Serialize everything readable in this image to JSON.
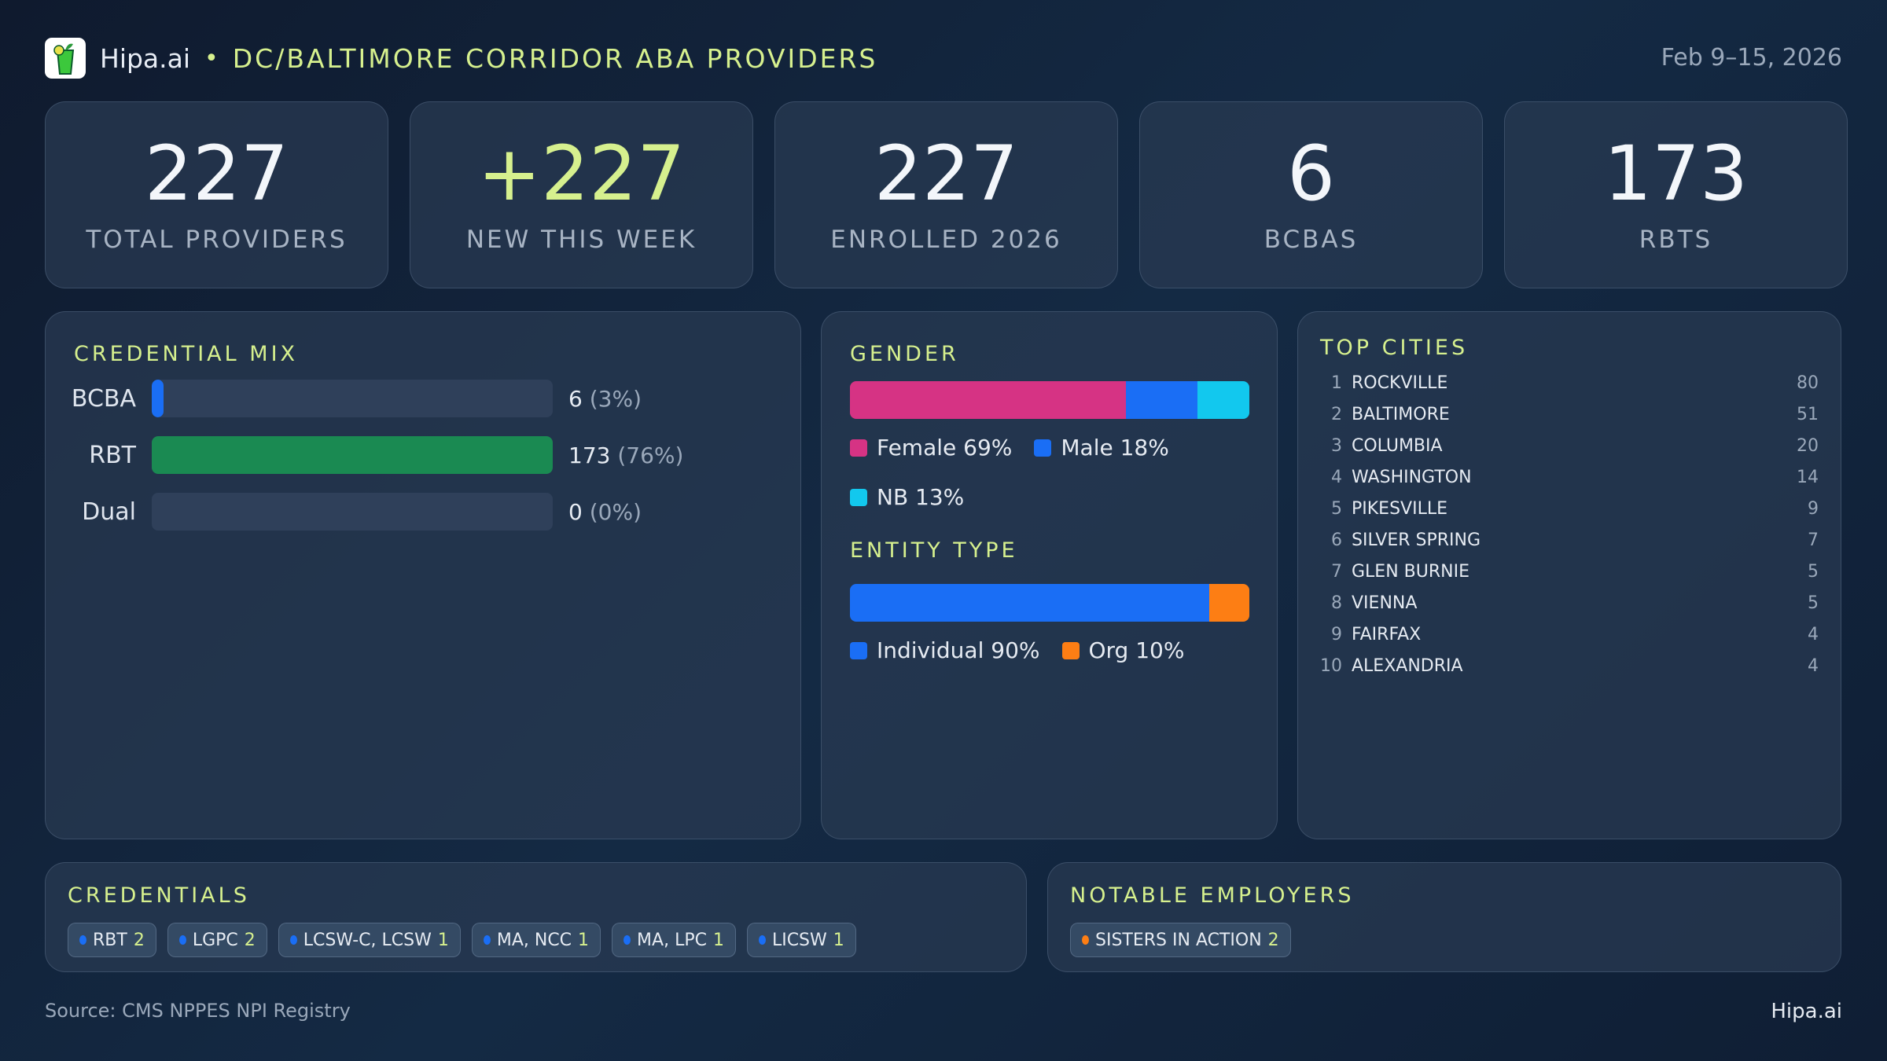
{
  "header": {
    "brand": "Hipa.ai",
    "separator": "•",
    "title": "DC/BALTIMORE CORRIDOR ABA PROVIDERS",
    "date": "Feb 9–15, 2026"
  },
  "kpis": [
    {
      "value": "227",
      "label": "TOTAL PROVIDERS"
    },
    {
      "value": "+227",
      "label": "NEW THIS WEEK"
    },
    {
      "value": "227",
      "label": "ENROLLED 2026"
    },
    {
      "value": "6",
      "label": "BCBAS"
    },
    {
      "value": "173",
      "label": "RBTS"
    }
  ],
  "credential_mix": {
    "title": "CREDENTIAL MIX",
    "rows": [
      {
        "label": "BCBA",
        "count": "6",
        "pct": "(3%)",
        "fraction": 0.03,
        "color": "#1a6ef5"
      },
      {
        "label": "RBT",
        "count": "173",
        "pct": "(76%)",
        "fraction": 1.0,
        "color": "#1a8a52"
      },
      {
        "label": "Dual",
        "count": "0",
        "pct": "(0%)",
        "fraction": 0,
        "color": "#1a6ef5"
      }
    ]
  },
  "gender": {
    "title": "GENDER",
    "segments": [
      {
        "label": "Female 69%",
        "percent": 69,
        "color": "#d63384"
      },
      {
        "label": "Male 18%",
        "percent": 18,
        "color": "#1a6ef5"
      },
      {
        "label": "NB 13%",
        "percent": 13,
        "color": "#12c8ee"
      }
    ]
  },
  "entity": {
    "title": "ENTITY TYPE",
    "segments": [
      {
        "label": "Individual 90%",
        "percent": 90,
        "color": "#1a6ef5"
      },
      {
        "label": "Org 10%",
        "percent": 10,
        "color": "#fd7e14"
      }
    ]
  },
  "cities": {
    "title": "TOP CITIES",
    "items": [
      {
        "rank": "1",
        "name": "ROCKVILLE",
        "count": "80"
      },
      {
        "rank": "2",
        "name": "BALTIMORE",
        "count": "51"
      },
      {
        "rank": "3",
        "name": "COLUMBIA",
        "count": "20"
      },
      {
        "rank": "4",
        "name": "WASHINGTON",
        "count": "14"
      },
      {
        "rank": "5",
        "name": "PIKESVILLE",
        "count": "9"
      },
      {
        "rank": "6",
        "name": "SILVER SPRING",
        "count": "7"
      },
      {
        "rank": "7",
        "name": "GLEN BURNIE",
        "count": "5"
      },
      {
        "rank": "8",
        "name": "VIENNA",
        "count": "5"
      },
      {
        "rank": "9",
        "name": "FAIRFAX",
        "count": "4"
      },
      {
        "rank": "10",
        "name": "ALEXANDRIA",
        "count": "4"
      }
    ]
  },
  "credentials": {
    "title": "CREDENTIALS",
    "dot_color": "#1a6ef5",
    "items": [
      {
        "name": "RBT",
        "count": "2"
      },
      {
        "name": "LGPC",
        "count": "2"
      },
      {
        "name": "LCSW-C, LCSW",
        "count": "1"
      },
      {
        "name": "MA, NCC",
        "count": "1"
      },
      {
        "name": "MA, LPC",
        "count": "1"
      },
      {
        "name": "LICSW",
        "count": "1"
      }
    ]
  },
  "employers": {
    "title": "NOTABLE EMPLOYERS",
    "dot_color": "#fd7e14",
    "items": [
      {
        "name": "SISTERS IN ACTION",
        "count": "2"
      }
    ]
  },
  "footer": {
    "source": "Source: CMS NPPES NPI Registry",
    "brand": "Hipa.ai"
  }
}
